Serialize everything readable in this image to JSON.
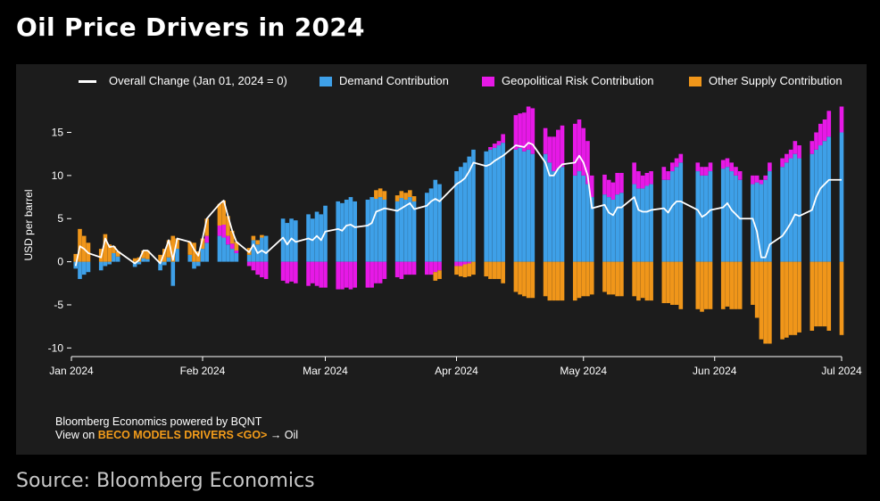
{
  "title": "Oil Price Drivers in 2024",
  "source": "Source: Bloomberg Economics",
  "credit": {
    "line1": "Bloomberg Economics powered by BQNT",
    "line2_prefix": "View on ",
    "line2_highlight": "BECO MODELS DRIVERS <GO>",
    "line2_suffix": " → Oil"
  },
  "colors": {
    "background": "#000000",
    "panel": "#1c1c1c",
    "demand": "#3ea0e8",
    "geopolitical": "#e619e6",
    "supply": "#f0961a",
    "overall": "#ffffff",
    "highlight": "#f39c1a"
  },
  "chart_data": {
    "type": "bar",
    "stacked": true,
    "ylabel": "USD per barrel",
    "ylim": [
      -11,
      19.5
    ],
    "yticks": [
      -10,
      -5,
      0,
      5,
      10,
      15
    ],
    "xlim": [
      "2024-01-01",
      "2024-07-01"
    ],
    "xticks": [
      "Jan 2024",
      "Feb 2024",
      "Mar 2024",
      "Apr 2024",
      "May 2024",
      "Jun 2024",
      "Jul 2024"
    ],
    "legend_position": "top",
    "grid": false,
    "series": [
      {
        "key": "overall",
        "name": "Overall Change (Jan 01, 2024 = 0)",
        "kind": "line"
      },
      {
        "key": "demand",
        "name": "Demand Contribution",
        "kind": "bar"
      },
      {
        "key": "geo",
        "name": "Geopolitical Risk Contribution",
        "kind": "bar"
      },
      {
        "key": "supply",
        "name": "Other Supply Contribution",
        "kind": "bar"
      }
    ],
    "points": [
      {
        "date": "2024-01-02",
        "demand": -0.8,
        "geo": 0.0,
        "supply": 0.9,
        "overall": -0.5
      },
      {
        "date": "2024-01-03",
        "demand": -2.0,
        "geo": 0.0,
        "supply": 3.8,
        "overall": 1.8
      },
      {
        "date": "2024-01-04",
        "demand": -1.5,
        "geo": 0.0,
        "supply": 3.0,
        "overall": 1.5
      },
      {
        "date": "2024-01-05",
        "demand": -1.2,
        "geo": 0.0,
        "supply": 2.2,
        "overall": 1.0
      },
      {
        "date": "2024-01-08",
        "demand": -1.0,
        "geo": 0.0,
        "supply": 1.5,
        "overall": 0.5
      },
      {
        "date": "2024-01-09",
        "demand": -0.5,
        "geo": 0.0,
        "supply": 3.2,
        "overall": 2.7
      },
      {
        "date": "2024-01-10",
        "demand": -0.3,
        "geo": 0.0,
        "supply": 2.0,
        "overall": 1.7
      },
      {
        "date": "2024-01-11",
        "demand": 1.0,
        "geo": 0.0,
        "supply": 0.8,
        "overall": 1.8
      },
      {
        "date": "2024-01-12",
        "demand": 0.6,
        "geo": 0.0,
        "supply": 0.6,
        "overall": 1.2
      },
      {
        "date": "2024-01-16",
        "demand": -0.6,
        "geo": 0.0,
        "supply": 0.4,
        "overall": -0.2
      },
      {
        "date": "2024-01-17",
        "demand": -0.3,
        "geo": 0.0,
        "supply": 0.5,
        "overall": 0.2
      },
      {
        "date": "2024-01-18",
        "demand": 0.4,
        "geo": 0.0,
        "supply": 0.9,
        "overall": 1.3
      },
      {
        "date": "2024-01-19",
        "demand": 0.3,
        "geo": 0.0,
        "supply": 1.0,
        "overall": 1.3
      },
      {
        "date": "2024-01-22",
        "demand": -1.0,
        "geo": 0.0,
        "supply": 0.8,
        "overall": -0.2
      },
      {
        "date": "2024-01-23",
        "demand": -0.4,
        "geo": 0.0,
        "supply": 1.5,
        "overall": 1.1
      },
      {
        "date": "2024-01-24",
        "demand": 0.5,
        "geo": 0.0,
        "supply": 2.0,
        "overall": 2.5
      },
      {
        "date": "2024-01-25",
        "demand": -2.8,
        "geo": 0.0,
        "supply": 3.0,
        "overall": 0.2
      },
      {
        "date": "2024-01-26",
        "demand": 1.5,
        "geo": 0.0,
        "supply": 1.2,
        "overall": 2.7
      },
      {
        "date": "2024-01-29",
        "demand": 0.8,
        "geo": 0.0,
        "supply": 1.5,
        "overall": 2.3
      },
      {
        "date": "2024-01-30",
        "demand": -0.8,
        "geo": 0.0,
        "supply": 2.2,
        "overall": 1.4
      },
      {
        "date": "2024-01-31",
        "demand": -0.5,
        "geo": 0.0,
        "supply": 1.2,
        "overall": 0.7
      },
      {
        "date": "2024-02-01",
        "demand": 1.5,
        "geo": 0.0,
        "supply": 1.2,
        "overall": 2.7
      },
      {
        "date": "2024-02-02",
        "demand": 2.2,
        "geo": 0.8,
        "supply": 2.0,
        "overall": 5.0
      },
      {
        "date": "2024-02-05",
        "demand": 3.0,
        "geo": 1.2,
        "supply": 2.5,
        "overall": 6.7
      },
      {
        "date": "2024-02-06",
        "demand": 2.8,
        "geo": 1.5,
        "supply": 2.8,
        "overall": 7.1
      },
      {
        "date": "2024-02-07",
        "demand": 2.0,
        "geo": 1.0,
        "supply": 2.3,
        "overall": 5.3
      },
      {
        "date": "2024-02-08",
        "demand": 1.5,
        "geo": 0.6,
        "supply": 1.5,
        "overall": 3.6
      },
      {
        "date": "2024-02-09",
        "demand": 1.0,
        "geo": 0.3,
        "supply": 1.0,
        "overall": 2.3
      },
      {
        "date": "2024-02-12",
        "demand": 0.8,
        "geo": -0.5,
        "supply": 0.8,
        "overall": 1.1
      },
      {
        "date": "2024-02-13",
        "demand": 2.5,
        "geo": -1.0,
        "supply": 0.5,
        "overall": 2.0
      },
      {
        "date": "2024-02-14",
        "demand": 2.0,
        "geo": -1.5,
        "supply": 0.5,
        "overall": 1.0
      },
      {
        "date": "2024-02-15",
        "demand": 2.8,
        "geo": -1.8,
        "supply": 0.3,
        "overall": 1.3
      },
      {
        "date": "2024-02-16",
        "demand": 3.0,
        "geo": -2.0,
        "supply": 0.0,
        "overall": 1.0
      },
      {
        "date": "2024-02-20",
        "demand": 5.0,
        "geo": -2.2,
        "supply": 0.0,
        "overall": 2.8
      },
      {
        "date": "2024-02-21",
        "demand": 4.5,
        "geo": -2.5,
        "supply": 0.0,
        "overall": 2.0
      },
      {
        "date": "2024-02-22",
        "demand": 5.0,
        "geo": -2.3,
        "supply": 0.0,
        "overall": 2.7
      },
      {
        "date": "2024-02-23",
        "demand": 4.8,
        "geo": -2.5,
        "supply": 0.0,
        "overall": 2.3
      },
      {
        "date": "2024-02-26",
        "demand": 5.5,
        "geo": -2.8,
        "supply": 0.0,
        "overall": 2.7
      },
      {
        "date": "2024-02-27",
        "demand": 5.0,
        "geo": -2.5,
        "supply": 0.0,
        "overall": 2.5
      },
      {
        "date": "2024-02-28",
        "demand": 5.8,
        "geo": -2.8,
        "supply": 0.0,
        "overall": 3.0
      },
      {
        "date": "2024-02-29",
        "demand": 5.5,
        "geo": -3.0,
        "supply": 0.0,
        "overall": 2.5
      },
      {
        "date": "2024-03-01",
        "demand": 6.5,
        "geo": -3.0,
        "supply": 0.0,
        "overall": 3.5
      },
      {
        "date": "2024-03-04",
        "demand": 7.0,
        "geo": -3.2,
        "supply": 0.0,
        "overall": 3.8
      },
      {
        "date": "2024-03-05",
        "demand": 6.8,
        "geo": -3.2,
        "supply": 0.0,
        "overall": 3.6
      },
      {
        "date": "2024-03-06",
        "demand": 7.2,
        "geo": -3.0,
        "supply": 0.0,
        "overall": 4.2
      },
      {
        "date": "2024-03-07",
        "demand": 7.5,
        "geo": -3.2,
        "supply": 0.0,
        "overall": 4.3
      },
      {
        "date": "2024-03-08",
        "demand": 7.0,
        "geo": -3.0,
        "supply": 0.0,
        "overall": 4.0
      },
      {
        "date": "2024-03-11",
        "demand": 7.2,
        "geo": -3.0,
        "supply": 0.0,
        "overall": 4.2
      },
      {
        "date": "2024-03-12",
        "demand": 7.5,
        "geo": -3.0,
        "supply": 0.0,
        "overall": 4.5
      },
      {
        "date": "2024-03-13",
        "demand": 7.3,
        "geo": -2.5,
        "supply": 1.0,
        "overall": 5.8
      },
      {
        "date": "2024-03-14",
        "demand": 7.5,
        "geo": -2.5,
        "supply": 1.0,
        "overall": 6.0
      },
      {
        "date": "2024-03-15",
        "demand": 7.2,
        "geo": -2.0,
        "supply": 1.0,
        "overall": 6.2
      },
      {
        "date": "2024-03-18",
        "demand": 7.0,
        "geo": -1.8,
        "supply": 0.7,
        "overall": 5.9
      },
      {
        "date": "2024-03-19",
        "demand": 7.4,
        "geo": -2.0,
        "supply": 0.8,
        "overall": 6.2
      },
      {
        "date": "2024-03-20",
        "demand": 7.2,
        "geo": -1.5,
        "supply": 0.8,
        "overall": 6.5
      },
      {
        "date": "2024-03-21",
        "demand": 7.5,
        "geo": -1.5,
        "supply": 0.8,
        "overall": 6.8
      },
      {
        "date": "2024-03-22",
        "demand": 7.0,
        "geo": -1.5,
        "supply": 0.6,
        "overall": 6.1
      },
      {
        "date": "2024-03-25",
        "demand": 8.0,
        "geo": -1.5,
        "supply": 0.0,
        "overall": 6.5
      },
      {
        "date": "2024-03-26",
        "demand": 8.5,
        "geo": -1.5,
        "supply": 0.0,
        "overall": 7.0
      },
      {
        "date": "2024-03-27",
        "demand": 9.5,
        "geo": -1.2,
        "supply": -1.0,
        "overall": 7.3
      },
      {
        "date": "2024-03-28",
        "demand": 9.0,
        "geo": -1.0,
        "supply": -1.0,
        "overall": 7.0
      },
      {
        "date": "2024-04-01",
        "demand": 10.5,
        "geo": -0.5,
        "supply": -1.0,
        "overall": 9.0
      },
      {
        "date": "2024-04-02",
        "demand": 11.0,
        "geo": -0.5,
        "supply": -1.2,
        "overall": 9.3
      },
      {
        "date": "2024-04-03",
        "demand": 11.5,
        "geo": -0.3,
        "supply": -1.5,
        "overall": 9.7
      },
      {
        "date": "2024-04-04",
        "demand": 12.2,
        "geo": -0.2,
        "supply": -1.5,
        "overall": 10.5
      },
      {
        "date": "2024-04-05",
        "demand": 13.0,
        "geo": 0.0,
        "supply": -1.5,
        "overall": 11.5
      },
      {
        "date": "2024-04-08",
        "demand": 12.8,
        "geo": 0.0,
        "supply": -1.7,
        "overall": 11.1
      },
      {
        "date": "2024-04-09",
        "demand": 13.0,
        "geo": 0.3,
        "supply": -2.0,
        "overall": 11.3
      },
      {
        "date": "2024-04-10",
        "demand": 13.2,
        "geo": 0.5,
        "supply": -2.0,
        "overall": 11.7
      },
      {
        "date": "2024-04-11",
        "demand": 13.5,
        "geo": 0.5,
        "supply": -2.0,
        "overall": 12.0
      },
      {
        "date": "2024-04-12",
        "demand": 13.8,
        "geo": 1.0,
        "supply": -2.5,
        "overall": 12.3
      },
      {
        "date": "2024-04-15",
        "demand": 13.0,
        "geo": 4.0,
        "supply": -3.5,
        "overall": 13.5
      },
      {
        "date": "2024-04-16",
        "demand": 13.2,
        "geo": 4.0,
        "supply": -3.8,
        "overall": 13.4
      },
      {
        "date": "2024-04-17",
        "demand": 12.8,
        "geo": 4.5,
        "supply": -4.0,
        "overall": 13.3
      },
      {
        "date": "2024-04-18",
        "demand": 13.0,
        "geo": 5.0,
        "supply": -4.2,
        "overall": 13.8
      },
      {
        "date": "2024-04-19",
        "demand": 12.5,
        "geo": 5.3,
        "supply": -4.2,
        "overall": 13.6
      },
      {
        "date": "2024-04-22",
        "demand": 12.5,
        "geo": 3.0,
        "supply": -4.0,
        "overall": 11.5
      },
      {
        "date": "2024-04-23",
        "demand": 11.5,
        "geo": 3.0,
        "supply": -4.5,
        "overall": 10.0
      },
      {
        "date": "2024-04-24",
        "demand": 10.5,
        "geo": 4.0,
        "supply": -4.5,
        "overall": 10.0
      },
      {
        "date": "2024-04-25",
        "demand": 10.8,
        "geo": 4.5,
        "supply": -4.5,
        "overall": 10.8
      },
      {
        "date": "2024-04-26",
        "demand": 11.0,
        "geo": 4.8,
        "supply": -4.5,
        "overall": 11.3
      },
      {
        "date": "2024-04-29",
        "demand": 10.0,
        "geo": 6.0,
        "supply": -4.5,
        "overall": 11.5
      },
      {
        "date": "2024-04-30",
        "demand": 10.5,
        "geo": 6.0,
        "supply": -4.2,
        "overall": 12.3
      },
      {
        "date": "2024-05-01",
        "demand": 10.0,
        "geo": 5.5,
        "supply": -4.0,
        "overall": 11.5
      },
      {
        "date": "2024-05-02",
        "demand": 9.0,
        "geo": 5.0,
        "supply": -4.0,
        "overall": 10.0
      },
      {
        "date": "2024-05-03",
        "demand": 7.5,
        "geo": 2.5,
        "supply": -3.8,
        "overall": 6.2
      },
      {
        "date": "2024-05-06",
        "demand": 7.8,
        "geo": 2.3,
        "supply": -3.5,
        "overall": 6.6
      },
      {
        "date": "2024-05-07",
        "demand": 7.5,
        "geo": 2.0,
        "supply": -3.8,
        "overall": 5.7
      },
      {
        "date": "2024-05-08",
        "demand": 7.2,
        "geo": 2.0,
        "supply": -3.8,
        "overall": 5.4
      },
      {
        "date": "2024-05-09",
        "demand": 7.8,
        "geo": 2.5,
        "supply": -4.0,
        "overall": 6.3
      },
      {
        "date": "2024-05-10",
        "demand": 8.0,
        "geo": 2.3,
        "supply": -4.0,
        "overall": 6.3
      },
      {
        "date": "2024-05-13",
        "demand": 9.0,
        "geo": 2.5,
        "supply": -4.0,
        "overall": 7.5
      },
      {
        "date": "2024-05-14",
        "demand": 8.5,
        "geo": 2.0,
        "supply": -4.5,
        "overall": 6.0
      },
      {
        "date": "2024-05-15",
        "demand": 8.5,
        "geo": 1.5,
        "supply": -4.2,
        "overall": 5.8
      },
      {
        "date": "2024-05-16",
        "demand": 8.8,
        "geo": 1.5,
        "supply": -4.5,
        "overall": 5.8
      },
      {
        "date": "2024-05-17",
        "demand": 9.0,
        "geo": 1.5,
        "supply": -4.5,
        "overall": 6.0
      },
      {
        "date": "2024-05-20",
        "demand": 9.5,
        "geo": 1.5,
        "supply": -4.8,
        "overall": 6.2
      },
      {
        "date": "2024-05-21",
        "demand": 9.5,
        "geo": 1.0,
        "supply": -4.8,
        "overall": 5.7
      },
      {
        "date": "2024-05-22",
        "demand": 10.5,
        "geo": 1.0,
        "supply": -5.0,
        "overall": 6.5
      },
      {
        "date": "2024-05-23",
        "demand": 11.0,
        "geo": 1.0,
        "supply": -5.0,
        "overall": 7.0
      },
      {
        "date": "2024-05-24",
        "demand": 11.5,
        "geo": 1.0,
        "supply": -5.5,
        "overall": 7.0
      },
      {
        "date": "2024-05-28",
        "demand": 10.5,
        "geo": 1.0,
        "supply": -5.5,
        "overall": 6.0
      },
      {
        "date": "2024-05-29",
        "demand": 10.0,
        "geo": 1.0,
        "supply": -5.8,
        "overall": 5.2
      },
      {
        "date": "2024-05-30",
        "demand": 10.0,
        "geo": 1.0,
        "supply": -5.5,
        "overall": 5.5
      },
      {
        "date": "2024-05-31",
        "demand": 10.5,
        "geo": 1.0,
        "supply": -5.5,
        "overall": 6.0
      },
      {
        "date": "2024-06-03",
        "demand": 10.8,
        "geo": 1.0,
        "supply": -5.5,
        "overall": 6.3
      },
      {
        "date": "2024-06-04",
        "demand": 11.0,
        "geo": 1.0,
        "supply": -5.2,
        "overall": 6.8
      },
      {
        "date": "2024-06-05",
        "demand": 10.5,
        "geo": 1.0,
        "supply": -5.5,
        "overall": 6.0
      },
      {
        "date": "2024-06-06",
        "demand": 10.0,
        "geo": 1.0,
        "supply": -5.5,
        "overall": 5.5
      },
      {
        "date": "2024-06-07",
        "demand": 9.5,
        "geo": 1.0,
        "supply": -5.5,
        "overall": 5.0
      },
      {
        "date": "2024-06-10",
        "demand": 9.0,
        "geo": 1.0,
        "supply": -5.0,
        "overall": 5.0
      },
      {
        "date": "2024-06-11",
        "demand": 9.2,
        "geo": 0.8,
        "supply": -6.5,
        "overall": 3.5
      },
      {
        "date": "2024-06-12",
        "demand": 9.0,
        "geo": 0.5,
        "supply": -9.0,
        "overall": 0.5
      },
      {
        "date": "2024-06-13",
        "demand": 9.5,
        "geo": 0.5,
        "supply": -9.5,
        "overall": 0.5
      },
      {
        "date": "2024-06-14",
        "demand": 10.5,
        "geo": 1.0,
        "supply": -9.5,
        "overall": 2.0
      },
      {
        "date": "2024-06-17",
        "demand": 11.0,
        "geo": 1.0,
        "supply": -9.0,
        "overall": 3.0
      },
      {
        "date": "2024-06-18",
        "demand": 11.5,
        "geo": 1.0,
        "supply": -8.8,
        "overall": 3.7
      },
      {
        "date": "2024-06-19",
        "demand": 12.0,
        "geo": 1.0,
        "supply": -8.5,
        "overall": 4.5
      },
      {
        "date": "2024-06-20",
        "demand": 12.5,
        "geo": 1.5,
        "supply": -8.5,
        "overall": 5.5
      },
      {
        "date": "2024-06-21",
        "demand": 12.0,
        "geo": 1.5,
        "supply": -8.2,
        "overall": 5.3
      },
      {
        "date": "2024-06-24",
        "demand": 12.5,
        "geo": 1.5,
        "supply": -8.0,
        "overall": 6.0
      },
      {
        "date": "2024-06-25",
        "demand": 13.0,
        "geo": 2.0,
        "supply": -7.5,
        "overall": 7.5
      },
      {
        "date": "2024-06-26",
        "demand": 13.5,
        "geo": 2.5,
        "supply": -7.5,
        "overall": 8.5
      },
      {
        "date": "2024-06-27",
        "demand": 14.0,
        "geo": 2.5,
        "supply": -7.5,
        "overall": 9.0
      },
      {
        "date": "2024-06-28",
        "demand": 14.5,
        "geo": 3.0,
        "supply": -8.0,
        "overall": 9.5
      },
      {
        "date": "2024-07-01",
        "demand": 15.0,
        "geo": 3.0,
        "supply": -8.5,
        "overall": 9.5
      }
    ]
  }
}
